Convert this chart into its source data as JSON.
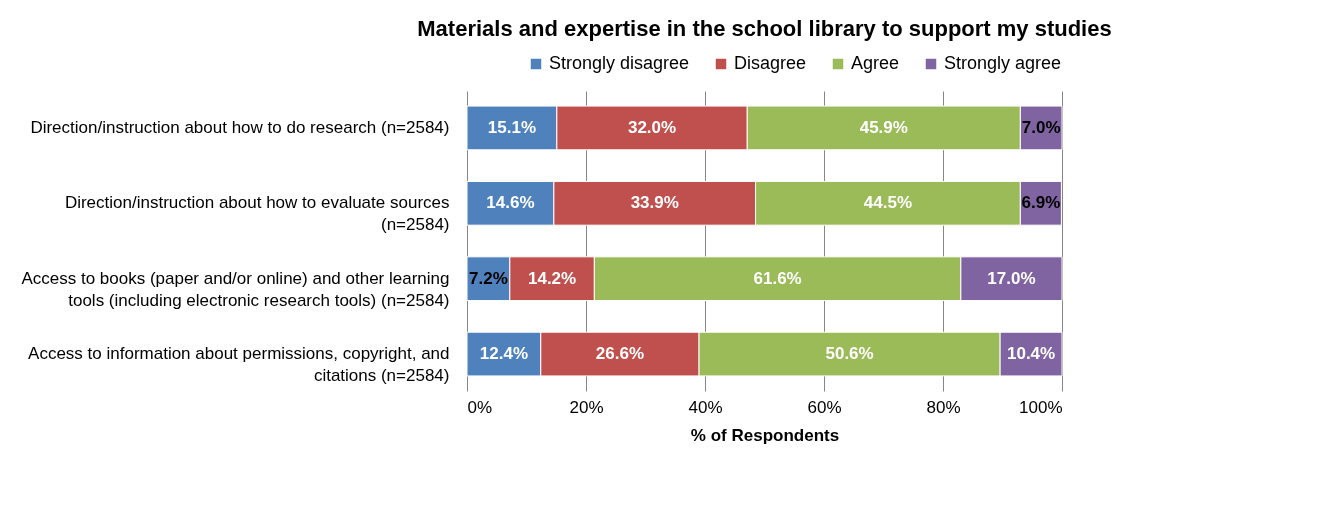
{
  "chart_data": {
    "type": "bar",
    "title": "Materials and expertise in the school library to support my studies",
    "orientation": "horizontal",
    "stacked": true,
    "categories": [
      "Direction/instruction about how to do research (n=2584)",
      "Direction/instruction about how to evaluate sources (n=2584)",
      "Access to books (paper and/or online) and other learning tools (including electronic research tools) (n=2584)",
      "Access to information about permissions, copyright, and citations (n=2584)"
    ],
    "series": [
      {
        "name": "Strongly disagree",
        "color": "#4f81bd",
        "values": [
          15.1,
          14.6,
          7.2,
          12.4
        ],
        "value_labels": [
          "15.1%",
          "14.6%",
          "7.2%",
          "12.4%"
        ]
      },
      {
        "name": "Disagree",
        "color": "#c0504d",
        "values": [
          32.0,
          33.9,
          14.2,
          26.6
        ],
        "value_labels": [
          "32.0%",
          "33.9%",
          "14.2%",
          "26.6%"
        ]
      },
      {
        "name": "Agree",
        "color": "#9bbb59",
        "values": [
          45.9,
          44.5,
          61.6,
          50.6
        ],
        "value_labels": [
          "45.9%",
          "44.5%",
          "61.6%",
          "50.6%"
        ]
      },
      {
        "name": "Strongly agree",
        "color": "#8064a2",
        "values": [
          7.0,
          6.9,
          17.0,
          10.4
        ],
        "value_labels": [
          "7.0%",
          "6.9%",
          "17.0%",
          "10.4%"
        ]
      }
    ],
    "xlim": [
      0,
      100
    ],
    "xticks": [
      {
        "value": 0,
        "label": "0%"
      },
      {
        "value": 20,
        "label": "20%"
      },
      {
        "value": 40,
        "label": "40%"
      },
      {
        "value": 60,
        "label": "60%"
      },
      {
        "value": 80,
        "label": "80%"
      },
      {
        "value": 100,
        "label": "100%"
      }
    ],
    "xlabel": "% of Respondents",
    "grid": "x",
    "legend": "top"
  }
}
